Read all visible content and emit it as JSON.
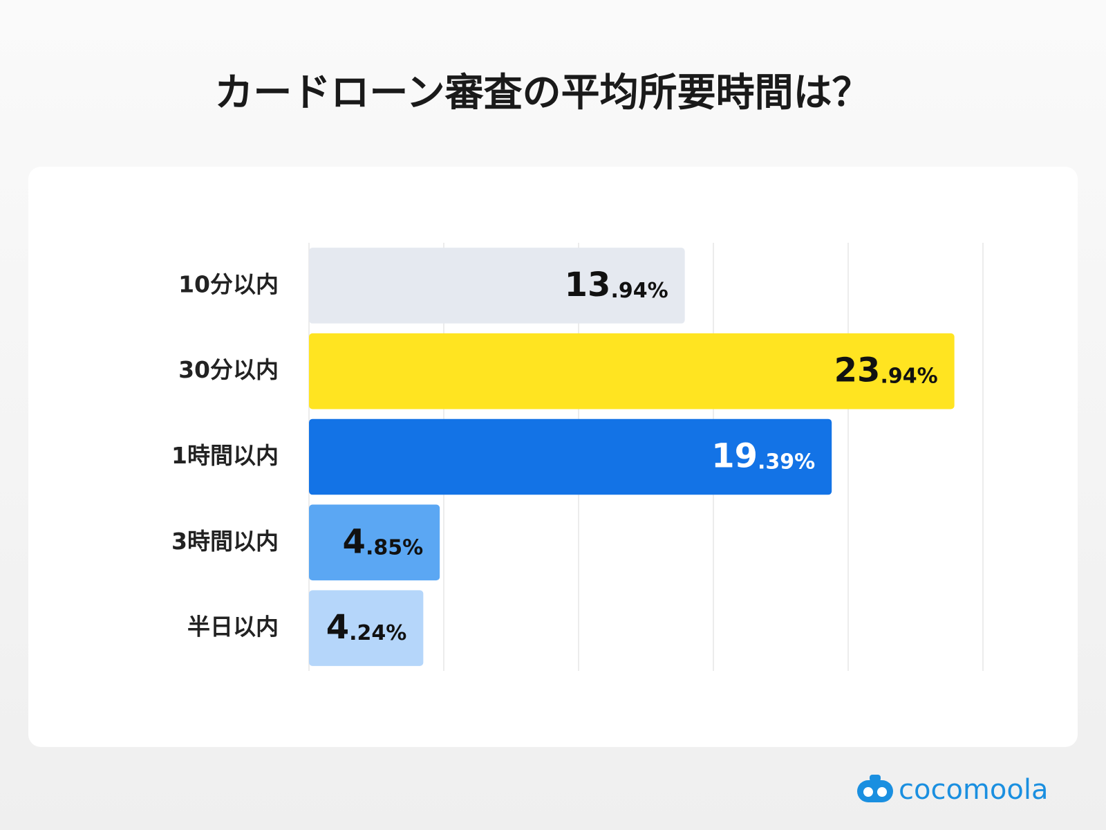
{
  "chart_data": {
    "type": "barh",
    "title": "カードローン審査の平均所要時間は？",
    "categories": [
      "10分以内",
      "30分以内",
      "1時間以内",
      "3時間以内",
      "半日以内"
    ],
    "values": [
      13.94,
      23.94,
      19.39,
      4.85,
      4.24
    ],
    "value_labels": [
      "13.94%",
      "23.94%",
      "19.39%",
      "4.85%",
      "4.24%"
    ],
    "colors": [
      "#e5e9f0",
      "#ffe421",
      "#1373e6",
      "#5ba7f3",
      "#b5d6fa"
    ],
    "xlim": [
      0,
      25
    ],
    "xticks": [
      0,
      5,
      10,
      15,
      20,
      25
    ],
    "grid": true
  },
  "footer": {
    "logo": "cocomoola"
  }
}
